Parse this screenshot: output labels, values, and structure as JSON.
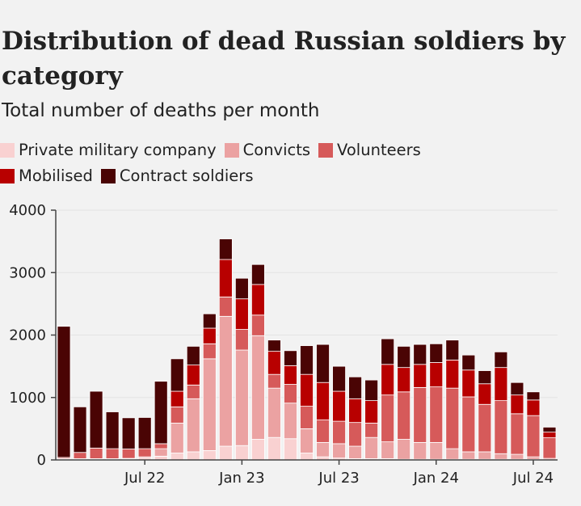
{
  "title": "Distribution of dead Russian soldiers by category",
  "subtitle": "Total number of deaths per month",
  "legend": [
    {
      "label": "Private military company",
      "color": "#f9d1d1"
    },
    {
      "label": "Convicts",
      "color": "#eba2a2"
    },
    {
      "label": "Volunteers",
      "color": "#d65a5a"
    },
    {
      "label": "Mobilised",
      "color": "#b80000"
    },
    {
      "label": "Contract soldiers",
      "color": "#4a0404"
    }
  ],
  "chart_data": {
    "type": "bar",
    "stacked": true,
    "title": "Distribution of dead Russian soldiers by category",
    "subtitle": "Total number of deaths per month",
    "xlabel": "",
    "ylabel": "",
    "ylim": [
      0,
      4000
    ],
    "y_ticks": [
      0,
      1000,
      2000,
      3000,
      4000
    ],
    "y_tick_labels": [
      "0",
      "1000",
      "2000",
      "3000",
      "4000"
    ],
    "grid": true,
    "legend_position": "top",
    "categories": [
      "Feb 22",
      "Mar 22",
      "Apr 22",
      "May 22",
      "Jun 22",
      "Jul 22",
      "Aug 22",
      "Sep 22",
      "Oct 22",
      "Nov 22",
      "Dec 22",
      "Jan 23",
      "Feb 23",
      "Mar 23",
      "Apr 23",
      "May 23",
      "Jun 23",
      "Jul 23",
      "Aug 23",
      "Sep 23",
      "Oct 23",
      "Nov 23",
      "Dec 23",
      "Jan 24",
      "Feb 24",
      "Mar 24",
      "Apr 24",
      "May 24",
      "Jun 24",
      "Jul 24",
      "Aug 24"
    ],
    "x_tick_labels": [
      {
        "index": 5,
        "label": "Jul 22"
      },
      {
        "index": 11,
        "label": "Jan 23"
      },
      {
        "index": 17,
        "label": "Jul 23"
      },
      {
        "index": 23,
        "label": "Jan 24"
      },
      {
        "index": 29,
        "label": "Jul 24"
      }
    ],
    "series": [
      {
        "name": "Private military company",
        "color": "#f9d1d1",
        "values": [
          15,
          15,
          15,
          15,
          15,
          30,
          60,
          110,
          130,
          150,
          220,
          230,
          330,
          360,
          340,
          110,
          50,
          30,
          20,
          20,
          20,
          10,
          10,
          10,
          10,
          10,
          10,
          10,
          10,
          10,
          5
        ]
      },
      {
        "name": "Convicts",
        "color": "#eba2a2",
        "values": [
          5,
          5,
          5,
          5,
          10,
          20,
          120,
          480,
          850,
          1470,
          2080,
          1530,
          1660,
          790,
          570,
          390,
          230,
          230,
          200,
          340,
          270,
          320,
          270,
          270,
          170,
          120,
          120,
          90,
          80,
          40,
          20
        ]
      },
      {
        "name": "Volunteers",
        "color": "#d65a5a",
        "values": [
          20,
          100,
          170,
          160,
          150,
          130,
          80,
          260,
          220,
          240,
          310,
          330,
          330,
          220,
          300,
          360,
          360,
          360,
          380,
          230,
          750,
          760,
          880,
          890,
          970,
          880,
          760,
          850,
          650,
          660,
          330
        ]
      },
      {
        "name": "Mobilised",
        "color": "#b80000",
        "values": [
          0,
          0,
          0,
          0,
          0,
          0,
          0,
          250,
          320,
          250,
          600,
          490,
          490,
          370,
          300,
          510,
          600,
          480,
          380,
          360,
          490,
          390,
          370,
          390,
          450,
          430,
          330,
          530,
          300,
          250,
          90
        ]
      },
      {
        "name": "Contract soldiers",
        "color": "#4a0404",
        "values": [
          2100,
          730,
          910,
          590,
          500,
          500,
          1000,
          520,
          300,
          230,
          330,
          330,
          320,
          180,
          240,
          460,
          610,
          400,
          350,
          330,
          410,
          340,
          320,
          300,
          320,
          240,
          210,
          250,
          200,
          130,
          80
        ]
      }
    ]
  }
}
